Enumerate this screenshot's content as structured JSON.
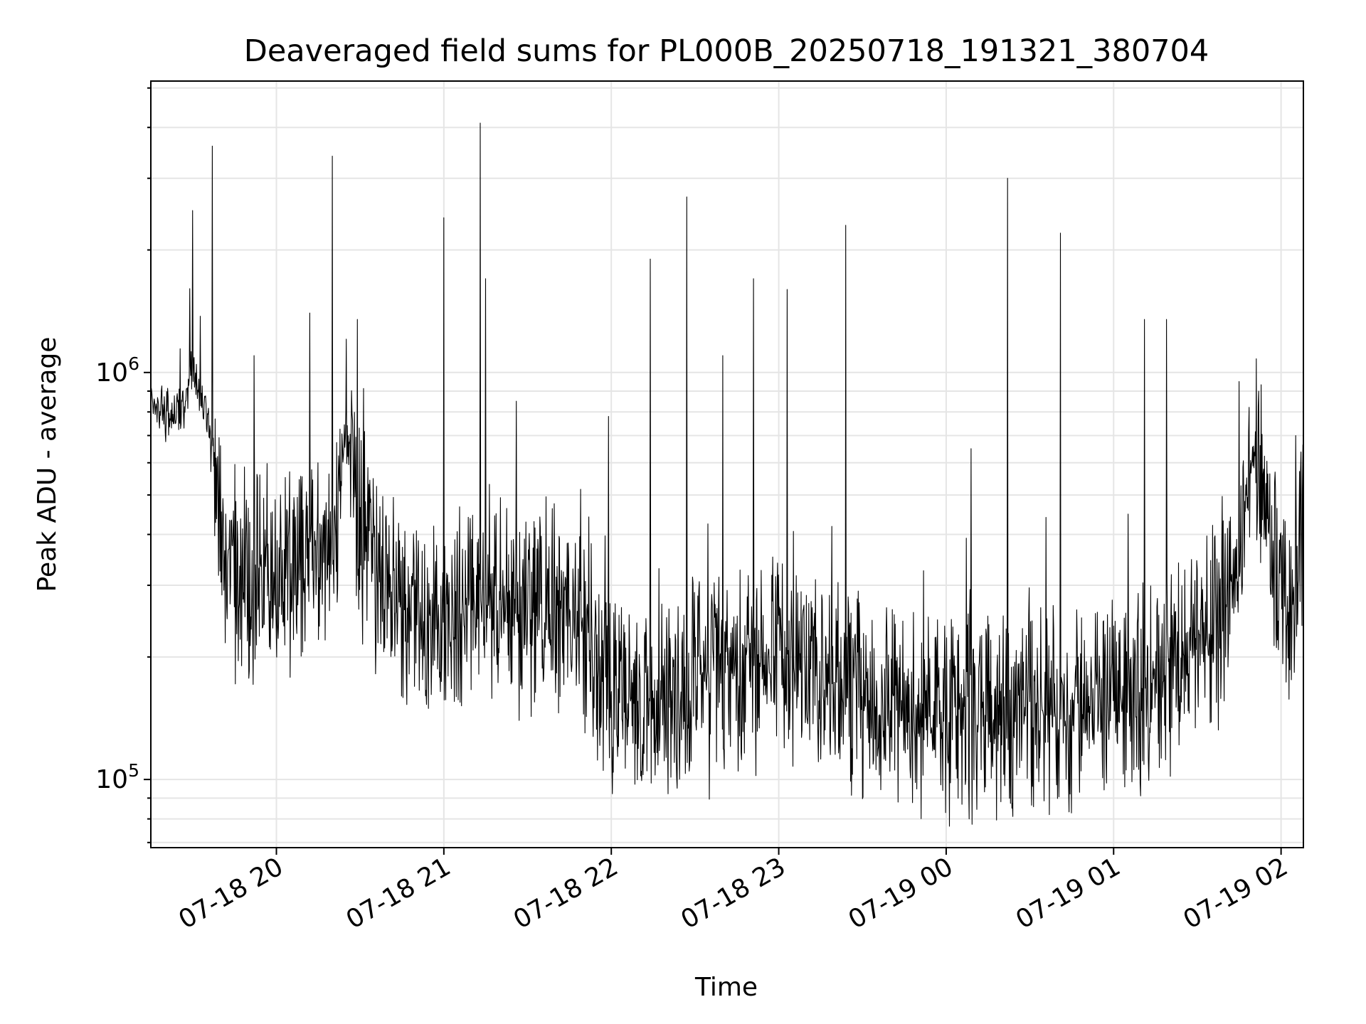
{
  "chart_data": {
    "type": "line",
    "title": "Deaveraged field sums for PL000B_20250718_191321_380704",
    "xlabel": "Time",
    "ylabel": "Peak ADU - average",
    "yscale": "log",
    "grid": true,
    "legend": "none",
    "line_color": "#000000",
    "grid_color": "#e5e5e5",
    "x_ticks": [
      "07-18 20",
      "07-18 21",
      "07-18 22",
      "07-18 23",
      "07-19 00",
      "07-19 01",
      "07-19 02"
    ],
    "y_tick_labels": [
      {
        "value": 100000,
        "base": "10",
        "exp": "5"
      },
      {
        "value": 1000000,
        "base": "10",
        "exp": "6"
      }
    ],
    "xlim": [
      "2025-07-18 19:15",
      "2025-07-19 02:08"
    ],
    "ylim": [
      68000,
      5200000
    ],
    "x": [
      "2025-07-18 19:15",
      "2025-07-18 19:25",
      "2025-07-18 19:30",
      "2025-07-18 19:35",
      "2025-07-18 19:40",
      "2025-07-18 19:45",
      "2025-07-18 19:50",
      "2025-07-18 19:55",
      "2025-07-18 20:00",
      "2025-07-18 20:10",
      "2025-07-18 20:15",
      "2025-07-18 20:20",
      "2025-07-18 20:25",
      "2025-07-18 20:30",
      "2025-07-18 20:35",
      "2025-07-18 20:40",
      "2025-07-18 20:45",
      "2025-07-18 21:00",
      "2025-07-18 21:15",
      "2025-07-18 21:30",
      "2025-07-18 21:45",
      "2025-07-18 22:00",
      "2025-07-18 22:15",
      "2025-07-18 22:30",
      "2025-07-18 23:00",
      "2025-07-18 23:30",
      "2025-07-19 00:00",
      "2025-07-19 00:30",
      "2025-07-19 00:45",
      "2025-07-19 01:00",
      "2025-07-19 01:15",
      "2025-07-19 01:30",
      "2025-07-19 01:40",
      "2025-07-19 01:45",
      "2025-07-19 01:50",
      "2025-07-19 02:00",
      "2025-07-19 02:05",
      "2025-07-19 02:08"
    ],
    "y": [
      800000,
      780000,
      1000000,
      800000,
      450000,
      320000,
      300000,
      320000,
      300000,
      360000,
      380000,
      400000,
      700000,
      380000,
      350000,
      300000,
      260000,
      250000,
      290000,
      260000,
      270000,
      160000,
      150000,
      170000,
      200000,
      160000,
      140000,
      150000,
      140000,
      160000,
      170000,
      210000,
      270000,
      330000,
      650000,
      300000,
      280000,
      450000
    ],
    "spikes": [
      {
        "x": "2025-07-18 19:30",
        "y": 2500000
      },
      {
        "x": "2025-07-18 19:37",
        "y": 3600000
      },
      {
        "x": "2025-07-18 19:52",
        "y": 1100000
      },
      {
        "x": "2025-07-18 20:12",
        "y": 1400000
      },
      {
        "x": "2025-07-18 20:20",
        "y": 3400000
      },
      {
        "x": "2025-07-18 20:29",
        "y": 1350000
      },
      {
        "x": "2025-07-18 21:00",
        "y": 2400000
      },
      {
        "x": "2025-07-18 21:13",
        "y": 4100000
      },
      {
        "x": "2025-07-18 21:15",
        "y": 1700000
      },
      {
        "x": "2025-07-18 21:26",
        "y": 850000
      },
      {
        "x": "2025-07-18 21:59",
        "y": 780000
      },
      {
        "x": "2025-07-18 22:14",
        "y": 1900000
      },
      {
        "x": "2025-07-18 22:27",
        "y": 2700000
      },
      {
        "x": "2025-07-18 22:40",
        "y": 1100000
      },
      {
        "x": "2025-07-18 22:51",
        "y": 1700000
      },
      {
        "x": "2025-07-18 23:03",
        "y": 1600000
      },
      {
        "x": "2025-07-18 23:24",
        "y": 2300000
      },
      {
        "x": "2025-07-19 00:09",
        "y": 650000
      },
      {
        "x": "2025-07-19 00:22",
        "y": 3000000
      },
      {
        "x": "2025-07-19 00:41",
        "y": 2200000
      },
      {
        "x": "2025-07-19 01:11",
        "y": 1350000
      },
      {
        "x": "2025-07-19 01:19",
        "y": 1350000
      },
      {
        "x": "2025-07-19 01:45",
        "y": 950000
      },
      {
        "x": "2025-07-19 01:52",
        "y": 900000
      }
    ]
  }
}
